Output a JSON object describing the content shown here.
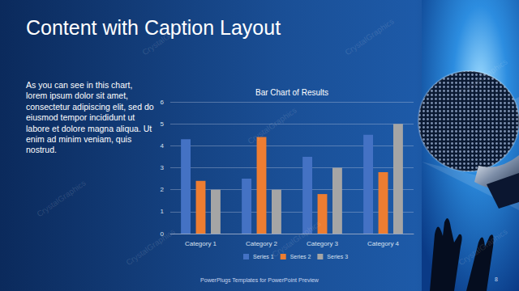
{
  "slide_title": "Content with Caption Layout",
  "caption": "As you can see in this chart, lorem ipsum dolor sit amet, consectetur adipiscing elit, sed do eiusmod tempor incididunt ut labore et dolore magna aliqua. Ut enim ad minim veniam, quis nostrud.",
  "footer": "PowerPlugs Templates for PowerPoint Preview",
  "page_number": "8",
  "watermark": "CrystalGraphics",
  "chart_data": {
    "type": "bar",
    "title": "Bar Chart of Results",
    "categories": [
      "Category 1",
      "Category 2",
      "Category 3",
      "Category 4"
    ],
    "series": [
      {
        "name": "Series 1",
        "color": "#4472c4",
        "values": [
          4.3,
          2.5,
          3.5,
          4.5
        ]
      },
      {
        "name": "Series 2",
        "color": "#ed7d31",
        "values": [
          2.4,
          4.4,
          1.8,
          2.8
        ]
      },
      {
        "name": "Series 3",
        "color": "#a5a5a5",
        "values": [
          2,
          2,
          3,
          5
        ]
      }
    ],
    "ylim": [
      0,
      6
    ],
    "yticks": [
      0,
      1,
      2,
      3,
      4,
      5,
      6
    ],
    "grid": true,
    "legend": "bottom"
  }
}
